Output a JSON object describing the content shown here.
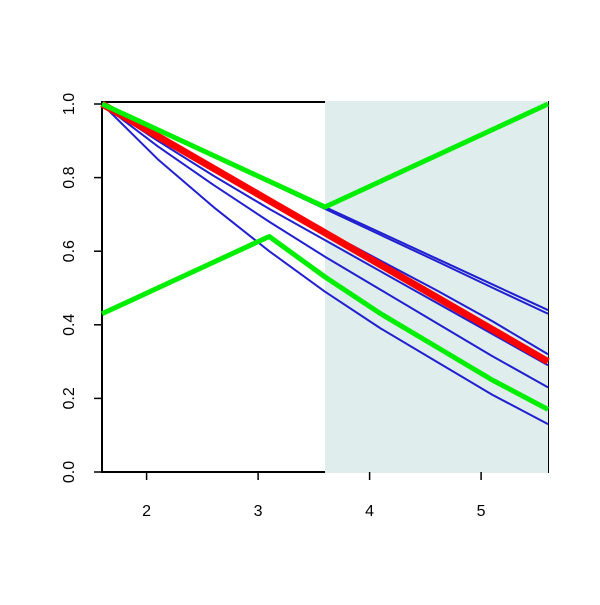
{
  "chart_data": {
    "type": "line",
    "x": [
      1.6,
      2.1,
      2.6,
      3.1,
      3.6,
      4.1,
      4.6,
      5.1,
      5.6
    ],
    "series": [
      {
        "color": "#2020d0",
        "width": 2,
        "values": [
          1,
          0.93,
          0.86,
          0.79,
          0.72,
          0.65,
          0.58,
          0.51,
          0.44
        ]
      },
      {
        "color": "#2020d0",
        "width": 2,
        "values": [
          1,
          0.929,
          0.858,
          0.786,
          0.715,
          0.644,
          0.573,
          0.501,
          0.43
        ]
      },
      {
        "color": "#2020d0",
        "width": 2,
        "values": [
          1,
          0.91,
          0.822,
          0.737,
          0.655,
          0.574,
          0.494,
          0.41,
          0.32
        ]
      },
      {
        "color": "#2020d0",
        "width": 2,
        "values": [
          1,
          0.9,
          0.805,
          0.715,
          0.63,
          0.545,
          0.46,
          0.375,
          0.29
        ]
      },
      {
        "color": "#2020d0",
        "width": 2,
        "values": [
          1,
          0.885,
          0.78,
          0.68,
          0.585,
          0.495,
          0.405,
          0.315,
          0.23
        ]
      },
      {
        "color": "#2020d0",
        "width": 2,
        "values": [
          1,
          0.85,
          0.72,
          0.6,
          0.49,
          0.39,
          0.3,
          0.21,
          0.13
        ]
      },
      {
        "color": "#ff0000",
        "width": 7,
        "values": [
          1,
          0.9125,
          0.825,
          0.7375,
          0.65,
          0.5625,
          0.475,
          0.3875,
          0.3
        ]
      },
      {
        "color": "#00ee00",
        "width": 5,
        "values": [
          1,
          0.93,
          0.86,
          0.79,
          0.72,
          0.79,
          0.86,
          0.93,
          1
        ]
      },
      {
        "color": "#00ee00",
        "width": 5,
        "values": [
          0.43,
          0.5,
          0.57,
          0.64,
          0.53,
          0.43,
          0.34,
          0.25,
          0.17
        ]
      }
    ],
    "shade_x": [
      3.6,
      5.6
    ],
    "shade_color": "#e0eded",
    "xlim": [
      1.6,
      5.6
    ],
    "xticks": [
      2,
      3,
      4,
      5
    ],
    "ylim": [
      0,
      1
    ],
    "yticks": [
      {
        "value": 0,
        "label": "0.0"
      },
      0.2,
      0.4,
      0.6,
      0.8,
      {
        "value": 1,
        "label": "1.0"
      }
    ]
  }
}
